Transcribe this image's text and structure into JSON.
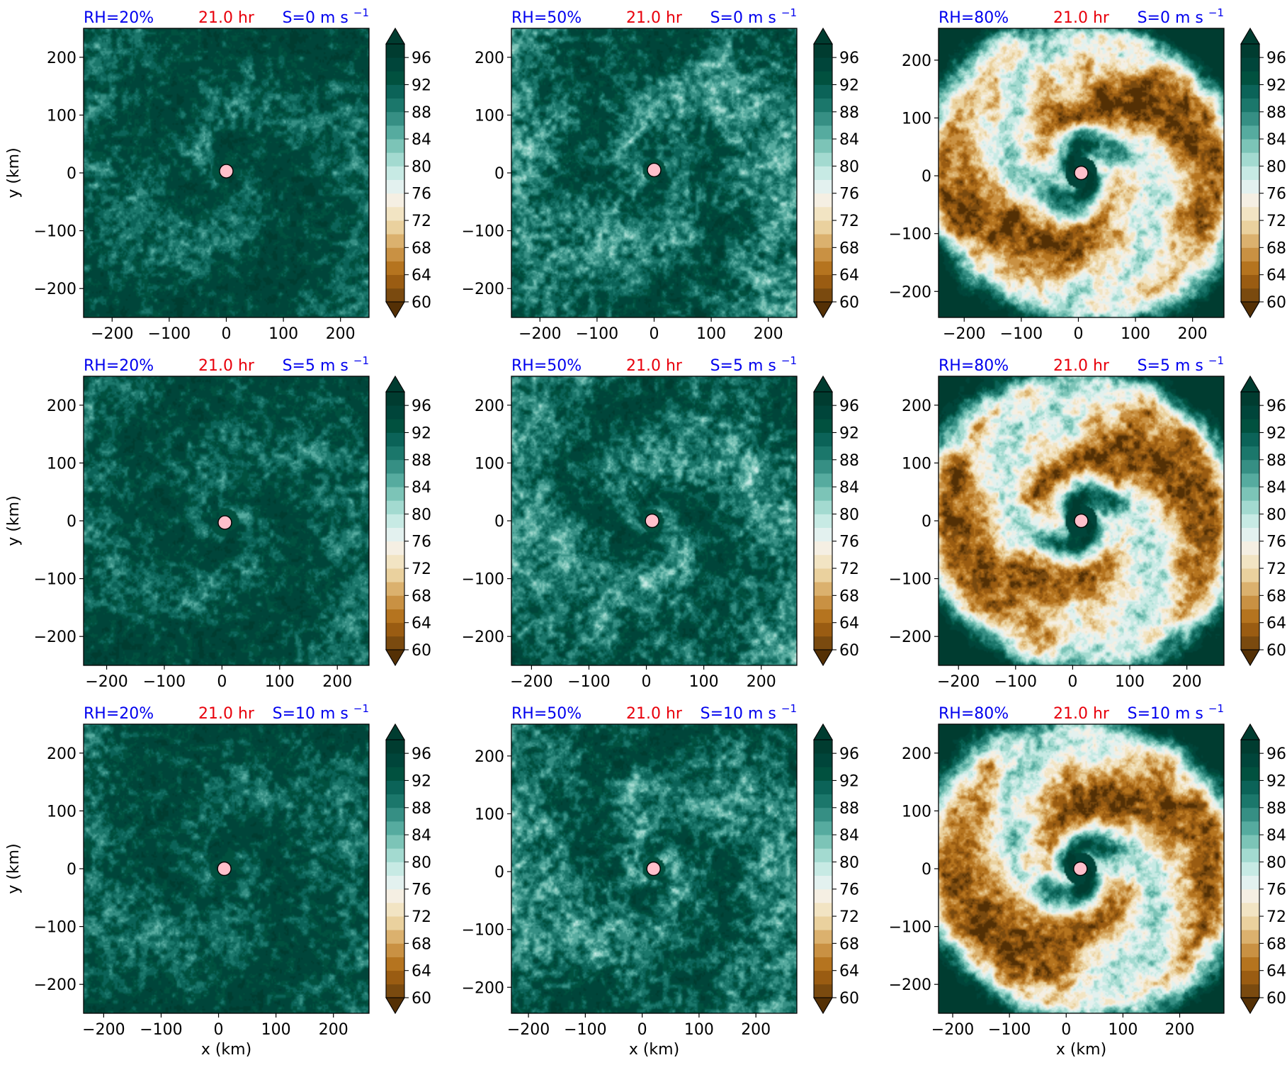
{
  "figure": {
    "x_label": "x (km)",
    "y_label": "y (km)",
    "time_label": "21.0 hr",
    "rh_color": "#0000ee",
    "time_color": "#e8000b",
    "shear_color": "#0000ee",
    "center_marker_color": "#ffc0cb"
  },
  "colormap": {
    "name": "BrBG",
    "levels": [
      60,
      62,
      64,
      66,
      68,
      70,
      72,
      74,
      76,
      78,
      80,
      82,
      84,
      86,
      88,
      90,
      92,
      94,
      96,
      98
    ],
    "tick_labels": [
      "60",
      "64",
      "68",
      "72",
      "76",
      "80",
      "84",
      "88",
      "92",
      "96"
    ],
    "colors": [
      "#543005",
      "#7a4a0f",
      "#9a5c12",
      "#b5741f",
      "#c99143",
      "#dbb16e",
      "#ead19e",
      "#f2e4c3",
      "#f5efe3",
      "#e3f1ef",
      "#c7eae4",
      "#a3dad0",
      "#7cc4b7",
      "#56ab9f",
      "#368f84",
      "#1b776b",
      "#0b6358",
      "#01513f",
      "#00453a",
      "#003c30"
    ],
    "extend": "both"
  },
  "chart_data": [
    {
      "type": "heatmap",
      "rh_label": "RH=20%",
      "time_label": "21.0 hr",
      "shear_label": "S=0 m s",
      "shear_exp": "−1",
      "rh": 20,
      "shear": 0,
      "xlim": [
        -250,
        250
      ],
      "ylim": [
        -250,
        250
      ],
      "xticks": [
        -200,
        -100,
        0,
        100,
        200
      ],
      "yticks": [
        -200,
        -100,
        0,
        100,
        200
      ],
      "center": [
        0,
        3
      ]
    },
    {
      "type": "heatmap",
      "rh_label": "RH=50%",
      "time_label": "21.0 hr",
      "shear_label": "S=0 m s",
      "shear_exp": "−1",
      "rh": 50,
      "shear": 0,
      "xlim": [
        -250,
        250
      ],
      "ylim": [
        -250,
        250
      ],
      "xticks": [
        -200,
        -100,
        0,
        100,
        200
      ],
      "yticks": [
        -200,
        -100,
        0,
        100,
        200
      ],
      "center": [
        0,
        5
      ]
    },
    {
      "type": "heatmap",
      "rh_label": "RH=80%",
      "time_label": "21.0 hr",
      "shear_label": "S=0 m s",
      "shear_exp": "−1",
      "rh": 80,
      "shear": 0,
      "xlim": [
        -245,
        255
      ],
      "ylim": [
        -245,
        255
      ],
      "xticks": [
        -200,
        -100,
        0,
        100,
        200
      ],
      "yticks": [
        -200,
        -100,
        0,
        100,
        200
      ],
      "center": [
        5,
        5
      ]
    },
    {
      "type": "heatmap",
      "rh_label": "RH=20%",
      "time_label": "21.0 hr",
      "shear_label": "S=5 m s",
      "shear_exp": "−1",
      "rh": 20,
      "shear": 5,
      "xlim": [
        -240,
        255
      ],
      "ylim": [
        -250,
        250
      ],
      "xticks": [
        -200,
        -100,
        0,
        100,
        200
      ],
      "yticks": [
        -200,
        -100,
        0,
        100,
        200
      ],
      "center": [
        5,
        -3
      ]
    },
    {
      "type": "heatmap",
      "rh_label": "RH=50%",
      "time_label": "21.0 hr",
      "shear_label": "S=5 m s",
      "shear_exp": "−1",
      "rh": 50,
      "shear": 5,
      "xlim": [
        -235,
        262
      ],
      "ylim": [
        -250,
        250
      ],
      "xticks": [
        -200,
        -100,
        0,
        100,
        200
      ],
      "yticks": [
        -200,
        -100,
        0,
        100,
        200
      ],
      "center": [
        10,
        0
      ]
    },
    {
      "type": "heatmap",
      "rh_label": "RH=80%",
      "time_label": "21.0 hr",
      "shear_label": "S=5 m s",
      "shear_exp": "−1",
      "rh": 80,
      "shear": 5,
      "xlim": [
        -235,
        265
      ],
      "ylim": [
        -250,
        250
      ],
      "xticks": [
        -200,
        -100,
        0,
        100,
        200
      ],
      "yticks": [
        -200,
        -100,
        0,
        100,
        200
      ],
      "center": [
        15,
        0
      ]
    },
    {
      "type": "heatmap",
      "rh_label": "RH=20%",
      "time_label": "21.0 hr",
      "shear_label": "S=10 m s",
      "shear_exp": "−1",
      "rh": 20,
      "shear": 10,
      "xlim": [
        -235,
        262
      ],
      "ylim": [
        -250,
        250
      ],
      "xticks": [
        -200,
        -100,
        0,
        100,
        200
      ],
      "yticks": [
        -200,
        -100,
        0,
        100,
        200
      ],
      "center": [
        10,
        0
      ]
    },
    {
      "type": "heatmap",
      "rh_label": "RH=50%",
      "time_label": "21.0 hr",
      "shear_label": "S=10 m s",
      "shear_exp": "−1",
      "rh": 50,
      "shear": 10,
      "xlim": [
        -230,
        272
      ],
      "ylim": [
        -245,
        255
      ],
      "xticks": [
        -200,
        -100,
        0,
        100,
        200
      ],
      "yticks": [
        -200,
        -100,
        0,
        100,
        200
      ],
      "center": [
        20,
        5
      ]
    },
    {
      "type": "heatmap",
      "rh_label": "RH=80%",
      "time_label": "21.0 hr",
      "shear_label": "S=10 m s",
      "shear_exp": "−1",
      "rh": 80,
      "shear": 10,
      "xlim": [
        -225,
        278
      ],
      "ylim": [
        -250,
        250
      ],
      "xticks": [
        -200,
        -100,
        0,
        100,
        200
      ],
      "yticks": [
        -200,
        -100,
        0,
        100,
        200
      ],
      "center": [
        25,
        0
      ]
    }
  ]
}
